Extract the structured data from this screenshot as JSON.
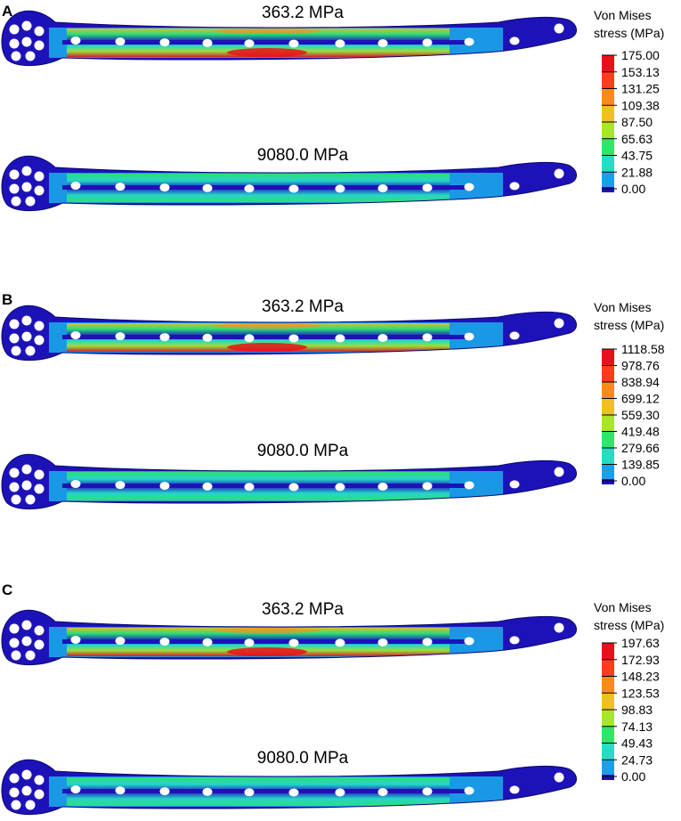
{
  "panels": [
    {
      "letter": "A",
      "legend": {
        "title_line1": "Von Mises",
        "title_line2": "stress (MPa)",
        "ticks": [
          "175.00",
          "153.13",
          "131.25",
          "109.38",
          "87.50",
          "65.63",
          "43.75",
          "21.88",
          "0.00"
        ]
      },
      "plates": [
        {
          "label": "363.2 MPa"
        },
        {
          "label": "9080.0 MPa"
        }
      ]
    },
    {
      "letter": "B",
      "legend": {
        "title_line1": "Von Mises",
        "title_line2": "stress (MPa)",
        "ticks": [
          "1118.58",
          "978.76",
          "838.94",
          "699.12",
          "559.30",
          "419.48",
          "279.66",
          "139.85",
          "0.00"
        ]
      },
      "plates": [
        {
          "label": "363.2 MPa"
        },
        {
          "label": "9080.0 MPa"
        }
      ]
    },
    {
      "letter": "C",
      "legend": {
        "title_line1": "Von Mises",
        "title_line2": "stress (MPa)",
        "ticks": [
          "197.63",
          "172.93",
          "148.23",
          "123.53",
          "98.83",
          "74.13",
          "49.43",
          "24.73",
          "0.00"
        ]
      },
      "plates": [
        {
          "label": "363.2 MPa"
        },
        {
          "label": "9080.0 MPa"
        }
      ]
    }
  ],
  "colors": {
    "scale": [
      "#1d12b8",
      "#1aa0e8",
      "#27dcc5",
      "#2ee66a",
      "#a8e62a",
      "#f0c020",
      "#ff8a1c",
      "#ff3c1c",
      "#e8101a"
    ],
    "hole": "#ffffff"
  }
}
